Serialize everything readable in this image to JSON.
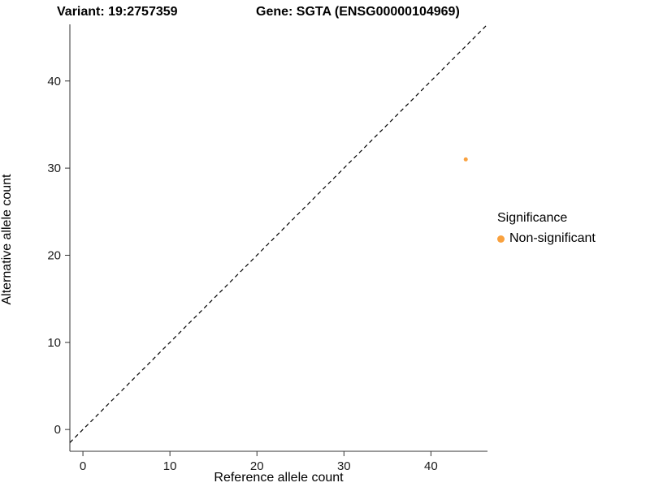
{
  "chart_data": {
    "type": "scatter",
    "titles": {
      "left": "Variant: 19:2757359",
      "right": "Gene: SGTA (ENSG00000104969)"
    },
    "xlabel": "Reference allele count",
    "ylabel": "Alternative allele count",
    "xlim": [
      -1.5,
      46.5
    ],
    "ylim": [
      -2.5,
      46.5
    ],
    "xticks": [
      0,
      10,
      20,
      30,
      40
    ],
    "yticks": [
      0,
      10,
      20,
      30,
      40
    ],
    "grid": false,
    "reference_line": {
      "type": "identity",
      "style": "dashed",
      "color": "#000000"
    },
    "series": [
      {
        "name": "Non-significant",
        "color": "#F9A13E",
        "points": [
          {
            "x": 44,
            "y": 31
          }
        ]
      }
    ],
    "legend": {
      "title": "Significance",
      "position": "right",
      "entries": [
        {
          "label": "Non-significant",
          "color": "#F9A13E"
        }
      ]
    }
  }
}
